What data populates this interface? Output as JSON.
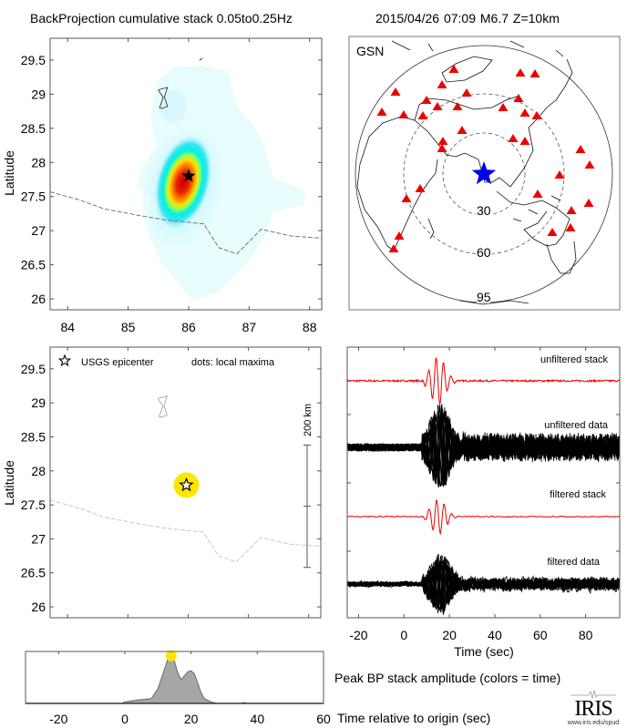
{
  "header": {
    "title": "BackProjection cumulative stack 0.05to0.25Hz",
    "event": "2015/04/26 07:09  M6.7  Z=10km"
  },
  "colors": {
    "station": "#ee0000",
    "epicenter_map": "#0000ee",
    "stack_trace": "#ee0000",
    "data_trace": "#000000",
    "peak_dot": "#ffe600",
    "envelope_fill": "#a6a6a6",
    "border_line": "#9a9a9a"
  },
  "chart_data": [
    {
      "id": "bp-stack-map",
      "type": "heatmap",
      "title": "BackProjection cumulative stack 0.05to0.25Hz",
      "xlabel": "",
      "ylabel": "Latitude",
      "xlim": [
        83.71,
        88.2
      ],
      "ylim": [
        25.84,
        29.82
      ],
      "xticks": [
        84,
        85,
        86,
        87,
        88
      ],
      "yticks": [
        26,
        26.5,
        27,
        27.5,
        28,
        28.5,
        29,
        29.5
      ],
      "ytick_labels": [
        "26",
        "26.5",
        "27",
        "27.5",
        "28",
        "28.5",
        "29",
        "29.5"
      ],
      "grid": false,
      "colormap": "jet (white at zero)",
      "peak": {
        "lon": 85.9,
        "lat": 27.7
      },
      "epicenter": {
        "lon": 86.0,
        "lat": 27.8,
        "marker": "filled-star"
      },
      "border": [
        [
          83.71,
          27.57
        ],
        [
          84.2,
          27.45
        ],
        [
          84.6,
          27.32
        ],
        [
          85.2,
          27.22
        ],
        [
          85.6,
          27.16
        ],
        [
          86.25,
          27.1
        ],
        [
          86.5,
          26.75
        ],
        [
          86.8,
          26.66
        ],
        [
          87.2,
          27.02
        ],
        [
          87.7,
          26.92
        ],
        [
          88.2,
          26.89
        ]
      ],
      "lake": [
        [
          85.52,
          29.07
        ],
        [
          85.65,
          29.1
        ],
        [
          85.6,
          28.96
        ],
        [
          85.65,
          28.82
        ],
        [
          85.55,
          28.79
        ],
        [
          85.52,
          28.8
        ],
        [
          85.58,
          28.95
        ],
        [
          85.5,
          29.06
        ]
      ]
    },
    {
      "id": "station-map",
      "type": "scatter",
      "title": "GSN",
      "projection": "azimuthal equidistant centered on epicenter",
      "distance_rings_deg": [
        30,
        60,
        95
      ],
      "ring_labels": [
        "30",
        "60",
        "95"
      ],
      "stations_count": 33,
      "epicenter_marker": "blue-star"
    },
    {
      "id": "local-maxima-map",
      "type": "scatter",
      "xlabel": "",
      "ylabel": "Latitude",
      "xlim": [
        83.71,
        88.2
      ],
      "ylim": [
        25.84,
        29.82
      ],
      "xticks": [
        84,
        85,
        86,
        87,
        88
      ],
      "yticks": [
        26,
        26.5,
        27,
        27.5,
        28,
        28.5,
        29,
        29.5
      ],
      "ytick_labels": [
        "26",
        "26.5",
        "27",
        "27.5",
        "28",
        "28.5",
        "29",
        "29.5"
      ],
      "legend": {
        "epicenter": "USGS epicenter",
        "dots": "dots: local maxima",
        "placement": "top"
      },
      "local_maxima": [
        {
          "lon": 85.97,
          "lat": 27.79
        }
      ],
      "epicenter": {
        "lon": 85.97,
        "lat": 27.79
      },
      "scale_bar": {
        "label": "200 km",
        "lon": 88.0,
        "lat_range": [
          26.58,
          28.38
        ]
      }
    },
    {
      "id": "waveforms",
      "type": "line",
      "xlabel": "Time (sec)",
      "xlim": [
        -25,
        95
      ],
      "xticks": [
        -20,
        0,
        20,
        40,
        60,
        80
      ],
      "series": [
        {
          "name": "unfiltered stack",
          "color": "#ee0000"
        },
        {
          "name": "unfiltered data",
          "color": "#000000"
        },
        {
          "name": "filtered stack",
          "color": "#ee0000"
        },
        {
          "name": "filtered data",
          "color": "#000000"
        }
      ],
      "event_onset_sec": 10,
      "peak_sec": 14
    },
    {
      "id": "peak-bp-amplitude",
      "type": "area",
      "title": "Peak BP stack amplitude (colors = time)",
      "xlabel": "Time relative to origin (sec)",
      "xlim": [
        -30,
        60
      ],
      "xticks": [
        -20,
        0,
        20,
        40,
        60
      ],
      "x": [
        -30,
        -1,
        0,
        4,
        8,
        10,
        12,
        13,
        14,
        15,
        16,
        17,
        18,
        19,
        20,
        21,
        22,
        23,
        24,
        26,
        28,
        35,
        36,
        37,
        60
      ],
      "y": [
        0,
        0,
        0.03,
        0.07,
        0.1,
        0.3,
        0.7,
        0.9,
        1.0,
        0.85,
        0.62,
        0.48,
        0.56,
        0.64,
        0.66,
        0.6,
        0.42,
        0.22,
        0.1,
        0.03,
        0,
        0,
        0.02,
        0,
        0
      ],
      "ylim": [
        0,
        1.05
      ],
      "peak": {
        "x": 14,
        "y": 1.0
      }
    }
  ],
  "footer": {
    "iris_logo_text": "IRIS",
    "iris_url": "www.iris.edu/spud"
  }
}
